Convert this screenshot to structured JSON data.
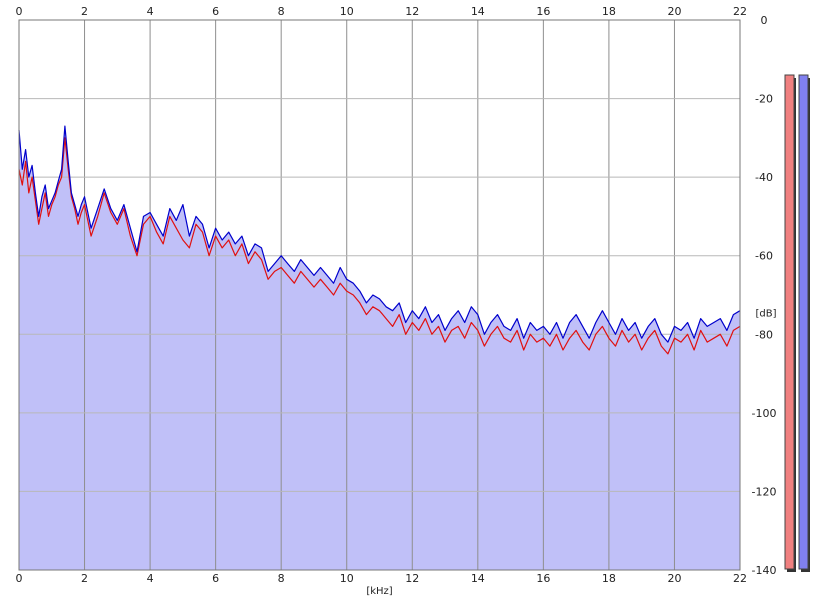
{
  "chart_data": {
    "type": "line",
    "title": "",
    "xlabel": "[kHz]",
    "ylabel": "[dB]",
    "xlim": [
      0,
      22
    ],
    "ylim": [
      -140,
      0
    ],
    "x_ticks": [
      "0",
      "2",
      "4",
      "6",
      "8",
      "10",
      "12",
      "14",
      "16",
      "18",
      "20",
      "22"
    ],
    "y_ticks": [
      "0",
      "-20",
      "-40",
      "-60",
      "-80",
      "-100",
      "-120",
      "-140"
    ],
    "y_tick_values": [
      0,
      -20,
      -40,
      -60,
      -80,
      -100,
      -120,
      -140
    ],
    "grid": true,
    "fill_color": "#c0c0f8",
    "series": [
      {
        "color": "#e01010",
        "x": [
          0.0,
          0.1,
          0.2,
          0.3,
          0.4,
          0.5,
          0.6,
          0.7,
          0.8,
          0.9,
          1.0,
          1.1,
          1.2,
          1.3,
          1.4,
          1.5,
          1.6,
          1.7,
          1.8,
          1.9,
          2.0,
          2.2,
          2.4,
          2.6,
          2.8,
          3.0,
          3.2,
          3.4,
          3.6,
          3.8,
          4.0,
          4.2,
          4.4,
          4.6,
          4.8,
          5.0,
          5.2,
          5.4,
          5.6,
          5.8,
          6.0,
          6.2,
          6.4,
          6.6,
          6.8,
          7.0,
          7.2,
          7.4,
          7.6,
          7.8,
          8.0,
          8.2,
          8.4,
          8.6,
          8.8,
          9.0,
          9.2,
          9.4,
          9.6,
          9.8,
          10.0,
          10.2,
          10.4,
          10.6,
          10.8,
          11.0,
          11.2,
          11.4,
          11.6,
          11.8,
          12.0,
          12.2,
          12.4,
          12.6,
          12.8,
          13.0,
          13.2,
          13.4,
          13.6,
          13.8,
          14.0,
          14.2,
          14.4,
          14.6,
          14.8,
          15.0,
          15.2,
          15.4,
          15.6,
          15.8,
          16.0,
          16.2,
          16.4,
          16.6,
          16.8,
          17.0,
          17.2,
          17.4,
          17.6,
          17.8,
          18.0,
          18.2,
          18.4,
          18.6,
          18.8,
          19.0,
          19.2,
          19.4,
          19.6,
          19.8,
          20.0,
          20.2,
          20.4,
          20.6,
          20.8,
          21.0,
          21.2,
          21.4,
          21.6,
          21.8,
          22.0
        ],
        "values": [
          -38,
          -42,
          -36,
          -44,
          -40,
          -46,
          -52,
          -48,
          -44,
          -50,
          -47,
          -45,
          -42,
          -40,
          -30,
          -38,
          -45,
          -48,
          -52,
          -49,
          -47,
          -55,
          -50,
          -44,
          -49,
          -52,
          -48,
          -55,
          -60,
          -52,
          -50,
          -54,
          -57,
          -50,
          -53,
          -56,
          -58,
          -52,
          -54,
          -60,
          -55,
          -58,
          -56,
          -60,
          -57,
          -62,
          -59,
          -61,
          -66,
          -64,
          -63,
          -65,
          -67,
          -64,
          -66,
          -68,
          -66,
          -68,
          -70,
          -67,
          -69,
          -70,
          -72,
          -75,
          -73,
          -74,
          -76,
          -78,
          -75,
          -80,
          -77,
          -79,
          -76,
          -80,
          -78,
          -82,
          -79,
          -78,
          -81,
          -77,
          -79,
          -83,
          -80,
          -78,
          -81,
          -82,
          -79,
          -84,
          -80,
          -82,
          -81,
          -83,
          -80,
          -84,
          -81,
          -79,
          -82,
          -84,
          -80,
          -78,
          -81,
          -83,
          -79,
          -82,
          -80,
          -84,
          -81,
          -79,
          -83,
          -85,
          -81,
          -82,
          -80,
          -84,
          -79,
          -82,
          -81,
          -80,
          -83,
          -79,
          -78
        ]
      },
      {
        "color": "#0000cc",
        "x": [
          0.0,
          0.1,
          0.2,
          0.3,
          0.4,
          0.5,
          0.6,
          0.7,
          0.8,
          0.9,
          1.0,
          1.1,
          1.2,
          1.3,
          1.4,
          1.5,
          1.6,
          1.7,
          1.8,
          1.9,
          2.0,
          2.2,
          2.4,
          2.6,
          2.8,
          3.0,
          3.2,
          3.4,
          3.6,
          3.8,
          4.0,
          4.2,
          4.4,
          4.6,
          4.8,
          5.0,
          5.2,
          5.4,
          5.6,
          5.8,
          6.0,
          6.2,
          6.4,
          6.6,
          6.8,
          7.0,
          7.2,
          7.4,
          7.6,
          7.8,
          8.0,
          8.2,
          8.4,
          8.6,
          8.8,
          9.0,
          9.2,
          9.4,
          9.6,
          9.8,
          10.0,
          10.2,
          10.4,
          10.6,
          10.8,
          11.0,
          11.2,
          11.4,
          11.6,
          11.8,
          12.0,
          12.2,
          12.4,
          12.6,
          12.8,
          13.0,
          13.2,
          13.4,
          13.6,
          13.8,
          14.0,
          14.2,
          14.4,
          14.6,
          14.8,
          15.0,
          15.2,
          15.4,
          15.6,
          15.8,
          16.0,
          16.2,
          16.4,
          16.6,
          16.8,
          17.0,
          17.2,
          17.4,
          17.6,
          17.8,
          18.0,
          18.2,
          18.4,
          18.6,
          18.8,
          19.0,
          19.2,
          19.4,
          19.6,
          19.8,
          20.0,
          20.2,
          20.4,
          20.6,
          20.8,
          21.0,
          21.2,
          21.4,
          21.6,
          21.8,
          22.0
        ],
        "values": [
          -28,
          -38,
          -33,
          -40,
          -37,
          -44,
          -50,
          -45,
          -42,
          -48,
          -46,
          -44,
          -41,
          -38,
          -27,
          -36,
          -44,
          -47,
          -50,
          -47,
          -45,
          -53,
          -48,
          -43,
          -48,
          -51,
          -47,
          -53,
          -59,
          -50,
          -49,
          -52,
          -55,
          -48,
          -51,
          -47,
          -55,
          -50,
          -52,
          -58,
          -53,
          -56,
          -54,
          -57,
          -55,
          -60,
          -57,
          -58,
          -64,
          -62,
          -60,
          -62,
          -64,
          -61,
          -63,
          -65,
          -63,
          -65,
          -67,
          -63,
          -66,
          -67,
          -69,
          -72,
          -70,
          -71,
          -73,
          -74,
          -72,
          -77,
          -74,
          -76,
          -73,
          -77,
          -75,
          -79,
          -76,
          -74,
          -77,
          -73,
          -75,
          -80,
          -77,
          -75,
          -78,
          -79,
          -76,
          -81,
          -77,
          -79,
          -78,
          -80,
          -77,
          -81,
          -77,
          -75,
          -78,
          -81,
          -77,
          -74,
          -77,
          -80,
          -76,
          -79,
          -77,
          -81,
          -78,
          -76,
          -80,
          -82,
          -78,
          -79,
          -77,
          -81,
          -76,
          -78,
          -77,
          -76,
          -79,
          -75,
          -74
        ]
      }
    ],
    "level_meters": [
      {
        "color": "#f08080",
        "border": "#444444"
      },
      {
        "color": "#8080f0",
        "border": "#444444"
      }
    ]
  }
}
